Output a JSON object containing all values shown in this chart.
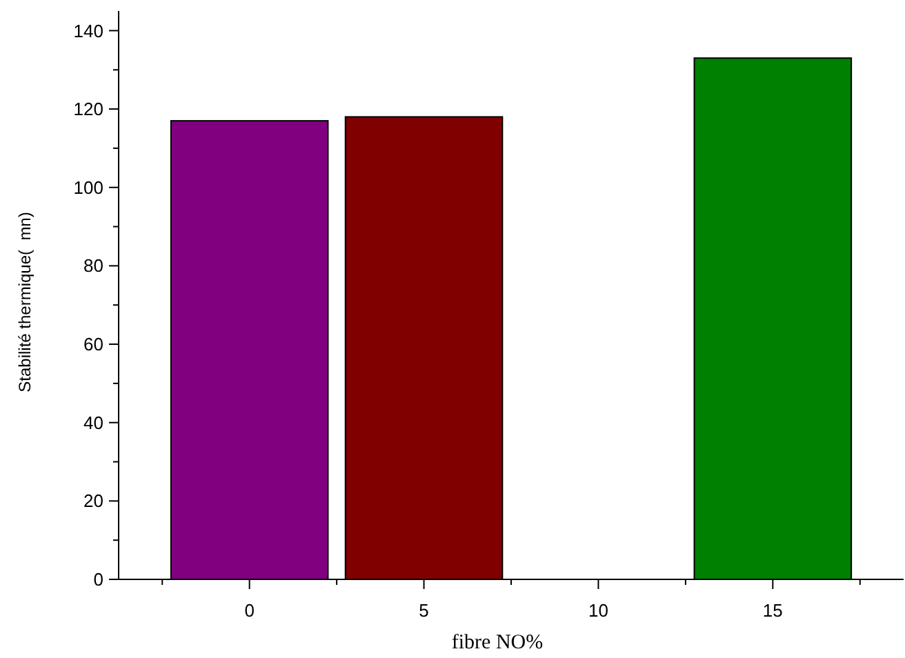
{
  "chart_data": {
    "type": "bar",
    "xlabel": "fibre NO%",
    "ylabel": "Stabilité thermique(  mn)",
    "x": [
      0,
      5,
      10,
      15
    ],
    "values": [
      117,
      118,
      null,
      133
    ],
    "colors": [
      "#800080",
      "#800000",
      null,
      "#008000"
    ],
    "xlim": [
      -3.75,
      18.75
    ],
    "xticks": [
      {
        "value": -2.5,
        "label": null
      },
      0,
      {
        "value": 2.5,
        "label": null
      },
      5,
      {
        "value": 7.5,
        "label": null
      },
      10,
      {
        "value": 12.5,
        "label": null
      },
      15,
      {
        "value": 17.5,
        "label": null
      }
    ],
    "ylim": [
      0,
      145
    ],
    "yticks": [
      0,
      {
        "value": 10,
        "label": null
      },
      20,
      {
        "value": 30,
        "label": null
      },
      40,
      {
        "value": 50,
        "label": null
      },
      60,
      {
        "value": 70,
        "label": null
      },
      80,
      {
        "value": 90,
        "label": null
      },
      100,
      {
        "value": 110,
        "label": null
      },
      120,
      {
        "value": 130,
        "label": null
      },
      140
    ]
  }
}
